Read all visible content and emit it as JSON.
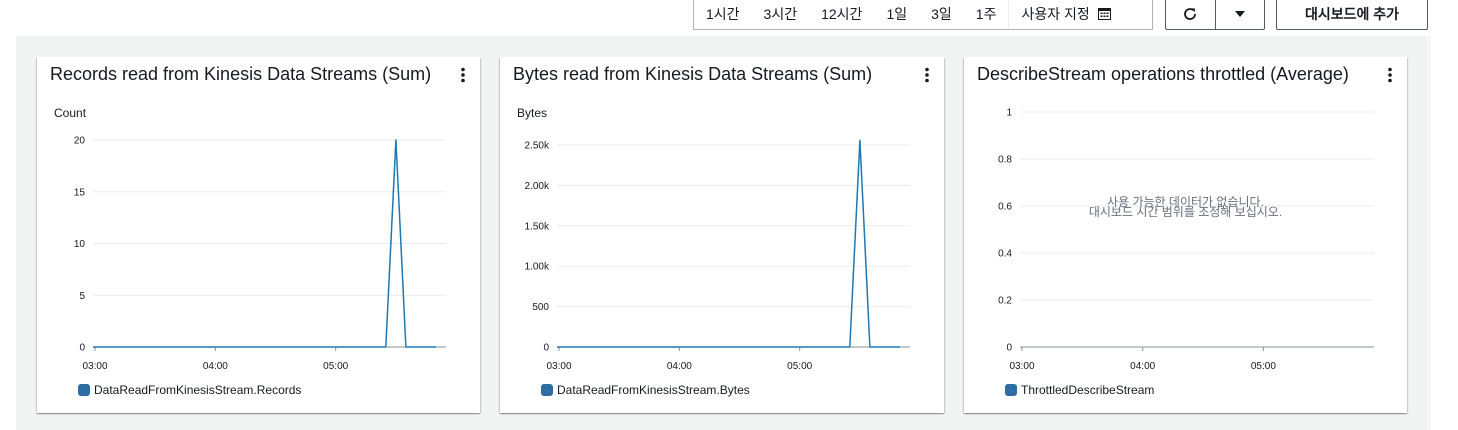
{
  "time_range": {
    "items": [
      "1시간",
      "3시간",
      "12시간",
      "1일",
      "3일",
      "1주"
    ],
    "custom_label": "사용자 지정"
  },
  "toolbar": {
    "add_to_dashboard": "대시보드에 추가"
  },
  "colors": {
    "series": "#1f77b4",
    "accent": "#2e6da4",
    "grid": "#e9ebed",
    "axis": "#879596"
  },
  "widgets": [
    {
      "title": "Records read from Kinesis Data Streams (Sum)",
      "unit": "Count",
      "legend": "DataReadFromKinesisStream.Records",
      "no_data": null
    },
    {
      "title": "Bytes read from Kinesis Data Streams (Sum)",
      "unit": "Bytes",
      "legend": "DataReadFromKinesisStream.Bytes",
      "no_data": null
    },
    {
      "title": "DescribeStream operations throttled (Average)",
      "unit": "",
      "legend": "ThrottledDescribeStream",
      "no_data": [
        "사용 가능한 데이터가 없습니다.",
        "대시보드 시간 범위를 조정해 보십시오."
      ]
    }
  ],
  "chart_data": [
    {
      "type": "line",
      "title": "Records read from Kinesis Data Streams (Sum)",
      "ylabel": "Count",
      "ylim": [
        0,
        20
      ],
      "yticks": [
        0,
        5,
        10,
        15,
        20
      ],
      "ytick_labels": [
        "0",
        "5",
        "10",
        "15",
        "20"
      ],
      "xlim": [
        "02:59",
        "05:55"
      ],
      "xticks": [
        "03:00",
        "04:00",
        "05:00"
      ],
      "grid": true,
      "legend_position": "bottom-left",
      "series": [
        {
          "name": "DataReadFromKinesisStream.Records",
          "x": [
            "02:59",
            "05:25",
            "05:30",
            "05:35",
            "05:50"
          ],
          "y": [
            0,
            0,
            20,
            0,
            0
          ]
        }
      ]
    },
    {
      "type": "line",
      "title": "Bytes read from Kinesis Data Streams (Sum)",
      "ylabel": "Bytes",
      "ylim": [
        0,
        2600
      ],
      "yticks": [
        0,
        500,
        1000,
        1500,
        2000,
        2500
      ],
      "ytick_labels": [
        "0",
        "500",
        "1.00k",
        "1.50k",
        "2.00k",
        "2.50k"
      ],
      "xlim": [
        "02:59",
        "05:55"
      ],
      "xticks": [
        "03:00",
        "04:00",
        "05:00"
      ],
      "grid": true,
      "legend_position": "bottom-left",
      "series": [
        {
          "name": "DataReadFromKinesisStream.Bytes",
          "x": [
            "02:59",
            "05:25",
            "05:30",
            "05:35",
            "05:50"
          ],
          "y": [
            0,
            0,
            2560,
            0,
            0
          ]
        }
      ]
    },
    {
      "type": "line",
      "title": "DescribeStream operations throttled (Average)",
      "ylabel": "",
      "ylim": [
        0,
        1
      ],
      "yticks": [
        0,
        0.2,
        0.4,
        0.6,
        0.8,
        1
      ],
      "ytick_labels": [
        "0",
        "0.2",
        "0.4",
        "0.6",
        "0.8",
        "1"
      ],
      "xlim": [
        "02:59",
        "05:55"
      ],
      "xticks": [
        "03:00",
        "04:00",
        "05:00"
      ],
      "grid": true,
      "legend_position": "bottom-left",
      "series": [
        {
          "name": "ThrottledDescribeStream",
          "x": [],
          "y": []
        }
      ]
    }
  ]
}
